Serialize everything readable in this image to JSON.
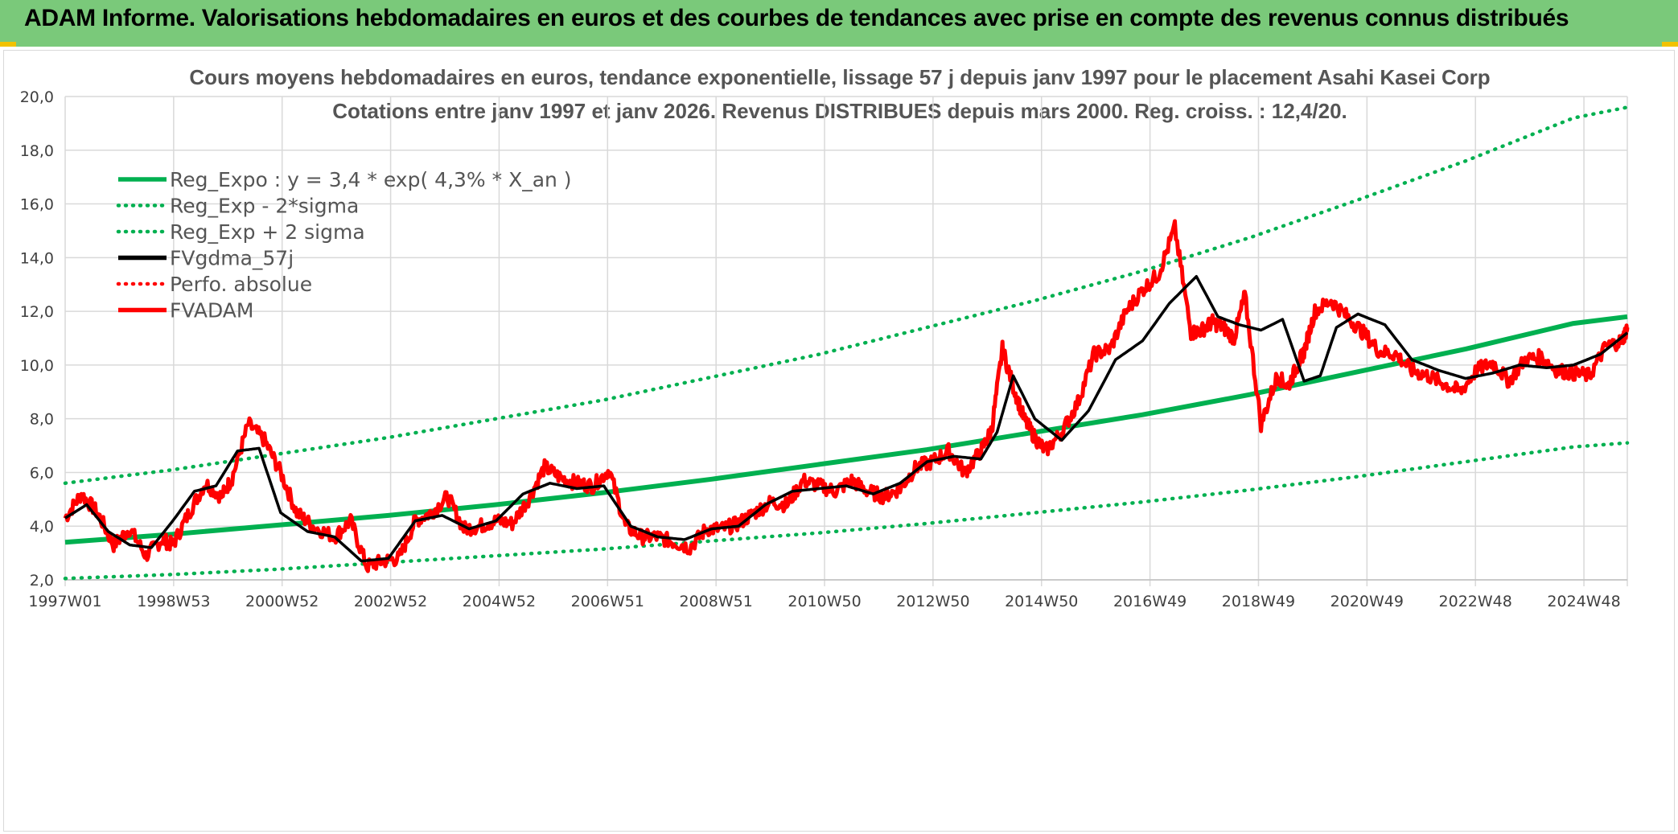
{
  "header": {
    "title": "ADAM Informe. Valorisations hebdomadaires en euros et des courbes de tendances avec prise en compte des revenus connus distribués"
  },
  "colors": {
    "header_bg": "#7ac97a",
    "trend": "#00b050",
    "price": "#ff0000",
    "smoothed": "#000000",
    "grid": "#d9d9d9"
  },
  "chart_data": {
    "type": "line",
    "title": "Cours moyens hebdomadaires en euros, tendance exponentielle, lissage 57 j depuis janv 1997 pour le placement Asahi Kasei Corp",
    "subtitle": "Cotations entre janv 1997 et janv 2026. Revenus DISTRIBUES depuis mars 2000. Reg. croiss. : 12,4/20.",
    "xlabel": "",
    "ylabel": "",
    "ylim": [
      2,
      20
    ],
    "yticks": [
      "2,0",
      "4,0",
      "6,0",
      "8,0",
      "10,0",
      "12,0",
      "14,0",
      "16,0",
      "18,0",
      "20,0"
    ],
    "xlim": [
      1997.0,
      2026.0
    ],
    "xtick_labels": [
      "1997W01",
      "1998W53",
      "2000W52",
      "2002W52",
      "2004W52",
      "2006W51",
      "2008W51",
      "2010W50",
      "2012W50",
      "2014W50",
      "2016W49",
      "2018W49",
      "2020W49",
      "2022W48",
      "2024W48"
    ],
    "grid": true,
    "legend_position": "top-left",
    "legend": [
      {
        "name": "Reg_Expo : y = 3,4 * exp( 4,3% *  X_an )",
        "style": "solid",
        "color": "#00b050"
      },
      {
        "name": "Reg_Exp - 2*sigma",
        "style": "dotted",
        "color": "#00b050"
      },
      {
        "name": "Reg_Exp + 2 sigma",
        "style": "dotted",
        "color": "#00b050"
      },
      {
        "name": "FVgdma_57j",
        "style": "solid",
        "color": "#000000"
      },
      {
        "name": "Perfo. absolue",
        "style": "dotted",
        "color": "#ff0000"
      },
      {
        "name": "FVADAM",
        "style": "solid",
        "color": "#ff0000"
      }
    ],
    "series": [
      {
        "name": "Reg_Expo : y = 3,4 * exp( 4,3% *  X_an )",
        "x": [
          1997.0,
          1999.0,
          2001.0,
          2003.0,
          2005.0,
          2007.0,
          2009.0,
          2011.0,
          2013.0,
          2015.0,
          2017.0,
          2019.0,
          2021.0,
          2023.0,
          2025.0,
          2026.0
        ],
        "values": [
          3.4,
          3.7,
          4.05,
          4.4,
          4.8,
          5.25,
          5.75,
          6.3,
          6.85,
          7.5,
          8.15,
          8.9,
          9.75,
          10.6,
          11.55,
          11.8
        ]
      },
      {
        "name": "Reg_Exp - 2*sigma",
        "x": [
          1997.0,
          1999.0,
          2001.0,
          2003.0,
          2005.0,
          2007.0,
          2009.0,
          2011.0,
          2013.0,
          2015.0,
          2017.0,
          2019.0,
          2021.0,
          2023.0,
          2025.0,
          2026.0
        ],
        "values": [
          2.05,
          2.2,
          2.4,
          2.65,
          2.9,
          3.15,
          3.45,
          3.75,
          4.1,
          4.5,
          4.9,
          5.35,
          5.85,
          6.4,
          6.95,
          7.1
        ]
      },
      {
        "name": "Reg_Exp + 2 sigma",
        "x": [
          1997.0,
          1999.0,
          2001.0,
          2003.0,
          2005.0,
          2007.0,
          2009.0,
          2011.0,
          2013.0,
          2015.0,
          2017.0,
          2019.0,
          2021.0,
          2023.0,
          2025.0,
          2026.0
        ],
        "values": [
          5.6,
          6.1,
          6.7,
          7.3,
          8.0,
          8.7,
          9.55,
          10.4,
          11.4,
          12.4,
          13.5,
          14.75,
          16.15,
          17.6,
          19.2,
          19.6
        ]
      },
      {
        "name": "FVgdma_57j",
        "x": [
          1997.0,
          1997.4,
          1997.8,
          1998.2,
          1998.6,
          1999.0,
          1999.4,
          1999.8,
          2000.2,
          2000.6,
          2001.0,
          2001.5,
          2002.0,
          2002.5,
          2003.0,
          2003.5,
          2004.0,
          2004.5,
          2005.0,
          2005.5,
          2006.0,
          2006.5,
          2007.0,
          2007.5,
          2008.0,
          2008.5,
          2009.0,
          2009.5,
          2010.0,
          2010.5,
          2011.0,
          2011.5,
          2012.0,
          2012.5,
          2013.0,
          2013.5,
          2014.0,
          2014.3,
          2014.6,
          2015.0,
          2015.5,
          2016.0,
          2016.5,
          2017.0,
          2017.5,
          2018.0,
          2018.4,
          2018.8,
          2019.2,
          2019.6,
          2020.0,
          2020.3,
          2020.6,
          2021.0,
          2021.5,
          2022.0,
          2022.5,
          2023.0,
          2023.5,
          2024.0,
          2024.5,
          2025.0,
          2025.5,
          2026.0
        ],
        "values": [
          4.3,
          4.8,
          3.8,
          3.3,
          3.2,
          4.2,
          5.3,
          5.5,
          6.8,
          6.9,
          4.5,
          3.8,
          3.6,
          2.7,
          2.8,
          4.2,
          4.4,
          3.9,
          4.2,
          5.2,
          5.6,
          5.4,
          5.5,
          4.0,
          3.6,
          3.5,
          3.9,
          4.0,
          4.8,
          5.3,
          5.4,
          5.5,
          5.2,
          5.6,
          6.4,
          6.6,
          6.5,
          7.5,
          9.6,
          8.0,
          7.2,
          8.3,
          10.2,
          10.9,
          12.3,
          13.3,
          11.8,
          11.5,
          11.3,
          11.7,
          9.4,
          9.6,
          11.4,
          11.9,
          11.5,
          10.2,
          9.8,
          9.5,
          9.7,
          10.0,
          9.9,
          10.0,
          10.4,
          11.2
        ]
      },
      {
        "name": "FVADAM",
        "x": [
          1997.0,
          1997.3,
          1997.6,
          1997.9,
          1998.2,
          1998.5,
          1998.8,
          1999.0,
          1999.3,
          1999.6,
          1999.9,
          2000.1,
          2000.4,
          2000.7,
          2001.0,
          2001.3,
          2001.6,
          2002.0,
          2002.3,
          2002.6,
          2002.9,
          2003.2,
          2003.5,
          2003.8,
          2004.1,
          2004.4,
          2004.7,
          2005.0,
          2005.3,
          2005.6,
          2005.9,
          2006.2,
          2006.5,
          2006.8,
          2007.1,
          2007.4,
          2007.7,
          2008.0,
          2008.3,
          2008.6,
          2008.9,
          2009.2,
          2009.5,
          2009.8,
          2010.1,
          2010.4,
          2010.7,
          2011.0,
          2011.3,
          2011.6,
          2011.9,
          2012.2,
          2012.5,
          2012.8,
          2013.1,
          2013.4,
          2013.7,
          2014.0,
          2014.2,
          2014.4,
          2014.6,
          2014.8,
          2015.0,
          2015.2,
          2015.5,
          2015.8,
          2016.1,
          2016.4,
          2016.7,
          2017.0,
          2017.3,
          2017.6,
          2017.9,
          2018.1,
          2018.3,
          2018.5,
          2018.7,
          2018.9,
          2019.2,
          2019.5,
          2019.7,
          2019.9,
          2020.0,
          2020.2,
          2020.5,
          2020.8,
          2021.1,
          2021.4,
          2021.7,
          2022.0,
          2022.3,
          2022.6,
          2022.9,
          2023.2,
          2023.5,
          2023.8,
          2024.1,
          2024.4,
          2024.7,
          2025.0,
          2025.3,
          2025.6,
          2025.9,
          2026.0
        ],
        "values": [
          4.3,
          5.2,
          4.5,
          3.3,
          3.9,
          2.9,
          3.5,
          3.3,
          4.5,
          5.6,
          5.1,
          5.8,
          7.8,
          7.2,
          6.0,
          4.5,
          4.0,
          3.6,
          4.2,
          2.5,
          2.7,
          2.8,
          4.2,
          4.5,
          5.1,
          3.9,
          4.0,
          4.2,
          4.1,
          5.0,
          6.2,
          5.8,
          5.6,
          5.5,
          6.1,
          4.0,
          3.6,
          3.6,
          3.4,
          3.2,
          3.9,
          3.9,
          4.1,
          4.5,
          4.9,
          4.8,
          5.7,
          5.5,
          5.3,
          5.7,
          5.3,
          5.1,
          5.4,
          6.2,
          6.4,
          6.8,
          6.0,
          6.8,
          7.6,
          10.6,
          9.2,
          8.0,
          7.3,
          6.8,
          7.5,
          8.6,
          10.4,
          10.6,
          12.0,
          12.8,
          13.4,
          15.1,
          11.2,
          11.3,
          11.6,
          11.4,
          11.0,
          12.6,
          7.8,
          9.6,
          9.2,
          10.1,
          10.5,
          12.0,
          12.4,
          11.8,
          11.2,
          10.5,
          10.4,
          9.8,
          9.6,
          9.3,
          9.0,
          9.8,
          10.1,
          9.4,
          10.2,
          10.3,
          9.8,
          9.7,
          9.6,
          10.7,
          10.9,
          11.4
        ]
      }
    ]
  }
}
